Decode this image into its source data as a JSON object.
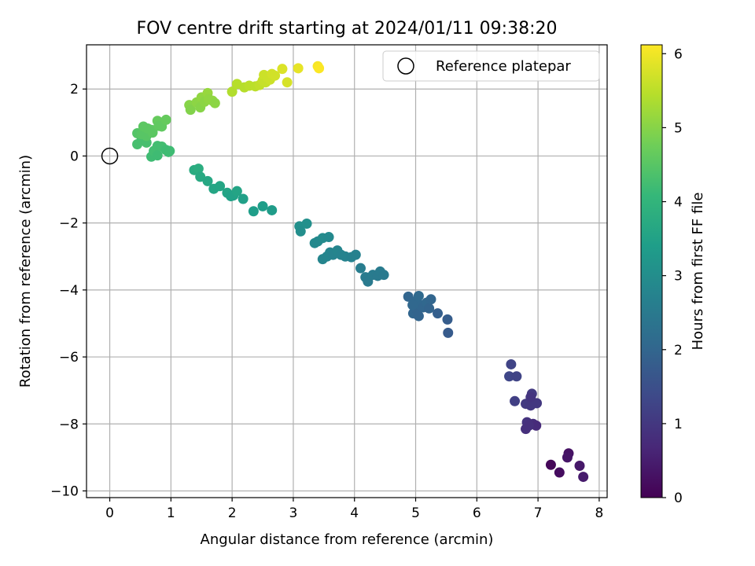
{
  "chart_data": {
    "type": "scatter",
    "title": "FOV centre drift starting at 2024/01/11 09:38:20",
    "xlabel": "Angular distance from reference (arcmin)",
    "ylabel": "Rotation from reference (arcmin)",
    "xlim": [
      -0.38,
      8.13
    ],
    "ylim": [
      -10.2,
      3.32
    ],
    "xticks": [
      0,
      1,
      2,
      3,
      4,
      5,
      6,
      7,
      8
    ],
    "yticks": [
      -10,
      -8,
      -6,
      -4,
      -2,
      0,
      2
    ],
    "grid": true,
    "legend": {
      "placement": "upper-right",
      "entries": [
        "Reference platepar"
      ]
    },
    "reference_point": {
      "x": 0,
      "y": 0
    },
    "colorbar": {
      "label": "Hours from first FF file",
      "min": 0,
      "max": 6.12,
      "ticks": [
        0,
        1,
        2,
        3,
        4,
        5,
        6
      ],
      "colormap": [
        "#440154",
        "#482878",
        "#3e4989",
        "#31688e",
        "#26828e",
        "#1f9e89",
        "#35b779",
        "#6ece58",
        "#b5de2b",
        "#fde725"
      ]
    },
    "series": [
      {
        "points": [
          [
            7.21,
            -9.22,
            0.1
          ],
          [
            7.35,
            -9.45,
            0.2
          ],
          [
            7.5,
            -8.88,
            0.3
          ],
          [
            7.48,
            -9.0,
            0.35
          ],
          [
            7.68,
            -9.25,
            0.4
          ],
          [
            7.74,
            -9.58,
            0.45
          ],
          [
            6.56,
            -6.22,
            1.25
          ],
          [
            6.53,
            -6.58,
            1.3
          ],
          [
            6.65,
            -6.58,
            1.25
          ],
          [
            6.62,
            -7.32,
            1.15
          ],
          [
            6.8,
            -7.4,
            1.05
          ],
          [
            6.88,
            -7.45,
            1.0
          ],
          [
            6.9,
            -7.1,
            1.05
          ],
          [
            6.98,
            -7.38,
            1.0
          ],
          [
            6.82,
            -7.95,
            0.9
          ],
          [
            6.8,
            -8.15,
            0.85
          ],
          [
            6.92,
            -8.0,
            0.8
          ],
          [
            6.97,
            -8.05,
            0.75
          ],
          [
            6.88,
            -7.2,
            0.95
          ],
          [
            6.85,
            -8.05,
            0.85
          ],
          [
            4.88,
            -4.2,
            2.0
          ],
          [
            4.98,
            -4.35,
            2.05
          ],
          [
            4.96,
            -4.7,
            2.0
          ],
          [
            5.02,
            -4.6,
            1.95
          ],
          [
            5.05,
            -4.18,
            2.1
          ],
          [
            5.08,
            -4.45,
            2.05
          ],
          [
            5.12,
            -4.52,
            2.0
          ],
          [
            5.18,
            -4.38,
            2.05
          ],
          [
            5.22,
            -4.55,
            1.95
          ],
          [
            5.25,
            -4.28,
            2.0
          ],
          [
            5.36,
            -4.7,
            1.85
          ],
          [
            5.52,
            -4.88,
            1.8
          ],
          [
            5.53,
            -5.28,
            1.75
          ],
          [
            5.05,
            -4.78,
            1.95
          ],
          [
            4.95,
            -4.45,
            2.05
          ],
          [
            3.1,
            -2.1,
            3.05
          ],
          [
            3.12,
            -2.25,
            3.0
          ],
          [
            3.22,
            -2.02,
            3.05
          ],
          [
            3.35,
            -2.6,
            2.9
          ],
          [
            3.4,
            -2.55,
            2.9
          ],
          [
            3.48,
            -2.45,
            2.95
          ],
          [
            3.58,
            -2.42,
            2.9
          ],
          [
            3.48,
            -3.08,
            2.8
          ],
          [
            3.55,
            -3.0,
            2.8
          ],
          [
            3.6,
            -2.88,
            2.8
          ],
          [
            3.65,
            -2.95,
            2.75
          ],
          [
            3.72,
            -2.82,
            2.8
          ],
          [
            3.78,
            -2.95,
            2.75
          ],
          [
            3.85,
            -3.0,
            2.75
          ],
          [
            3.95,
            -3.02,
            2.7
          ],
          [
            4.02,
            -2.95,
            2.7
          ],
          [
            4.1,
            -3.35,
            2.6
          ],
          [
            4.18,
            -3.62,
            2.55
          ],
          [
            4.22,
            -3.75,
            2.5
          ],
          [
            4.3,
            -3.55,
            2.55
          ],
          [
            4.38,
            -3.58,
            2.5
          ],
          [
            4.42,
            -3.45,
            2.55
          ],
          [
            4.48,
            -3.55,
            2.5
          ],
          [
            1.38,
            -0.42,
            3.75
          ],
          [
            1.45,
            -0.38,
            3.8
          ],
          [
            1.48,
            -0.62,
            3.7
          ],
          [
            1.6,
            -0.75,
            3.65
          ],
          [
            1.7,
            -0.98,
            3.6
          ],
          [
            1.8,
            -0.9,
            3.6
          ],
          [
            1.92,
            -1.1,
            3.55
          ],
          [
            1.98,
            -1.2,
            3.5
          ],
          [
            2.02,
            -1.18,
            3.5
          ],
          [
            2.08,
            -1.05,
            3.55
          ],
          [
            2.18,
            -1.28,
            3.45
          ],
          [
            2.35,
            -1.65,
            3.4
          ],
          [
            2.5,
            -1.5,
            3.4
          ],
          [
            2.65,
            -1.62,
            3.35
          ],
          [
            0.45,
            0.35,
            4.3
          ],
          [
            0.52,
            0.48,
            4.3
          ],
          [
            0.6,
            0.4,
            4.3
          ],
          [
            0.68,
            -0.02,
            4.2
          ],
          [
            0.72,
            0.15,
            4.25
          ],
          [
            0.78,
            0.3,
            4.25
          ],
          [
            0.78,
            0.02,
            4.2
          ],
          [
            0.85,
            0.28,
            4.25
          ],
          [
            0.92,
            0.18,
            4.2
          ],
          [
            0.96,
            0.12,
            4.2
          ],
          [
            0.98,
            0.15,
            4.2
          ],
          [
            0.45,
            0.68,
            4.45
          ],
          [
            0.52,
            0.65,
            4.5
          ],
          [
            0.55,
            0.88,
            4.55
          ],
          [
            0.6,
            0.6,
            4.5
          ],
          [
            0.62,
            0.82,
            4.55
          ],
          [
            0.68,
            0.78,
            4.55
          ],
          [
            0.7,
            0.7,
            4.55
          ],
          [
            0.78,
            1.05,
            4.65
          ],
          [
            0.8,
            0.9,
            4.6
          ],
          [
            0.85,
            0.88,
            4.6
          ],
          [
            0.92,
            1.08,
            4.65
          ],
          [
            1.3,
            1.52,
            5.0
          ],
          [
            1.32,
            1.38,
            4.95
          ],
          [
            1.42,
            1.6,
            5.05
          ],
          [
            1.48,
            1.45,
            5.0
          ],
          [
            1.5,
            1.75,
            5.1
          ],
          [
            1.55,
            1.62,
            5.05
          ],
          [
            1.6,
            1.88,
            5.15
          ],
          [
            1.62,
            1.7,
            5.1
          ],
          [
            1.68,
            1.65,
            5.1
          ],
          [
            1.72,
            1.58,
            5.05
          ],
          [
            2.0,
            1.92,
            5.4
          ],
          [
            2.08,
            2.15,
            5.45
          ],
          [
            2.2,
            2.05,
            5.45
          ],
          [
            2.28,
            2.1,
            5.5
          ],
          [
            2.38,
            2.08,
            5.5
          ],
          [
            2.45,
            2.12,
            5.55
          ],
          [
            2.5,
            2.25,
            5.6
          ],
          [
            2.52,
            2.42,
            5.65
          ],
          [
            2.55,
            2.2,
            5.6
          ],
          [
            2.58,
            2.35,
            5.65
          ],
          [
            2.62,
            2.28,
            5.65
          ],
          [
            2.65,
            2.45,
            5.7
          ],
          [
            2.7,
            2.4,
            5.7
          ],
          [
            2.82,
            2.6,
            5.8
          ],
          [
            2.9,
            2.2,
            5.75
          ],
          [
            3.08,
            2.62,
            5.9
          ],
          [
            3.4,
            2.68,
            6.05
          ],
          [
            3.42,
            2.62,
            6.1
          ]
        ]
      }
    ]
  }
}
